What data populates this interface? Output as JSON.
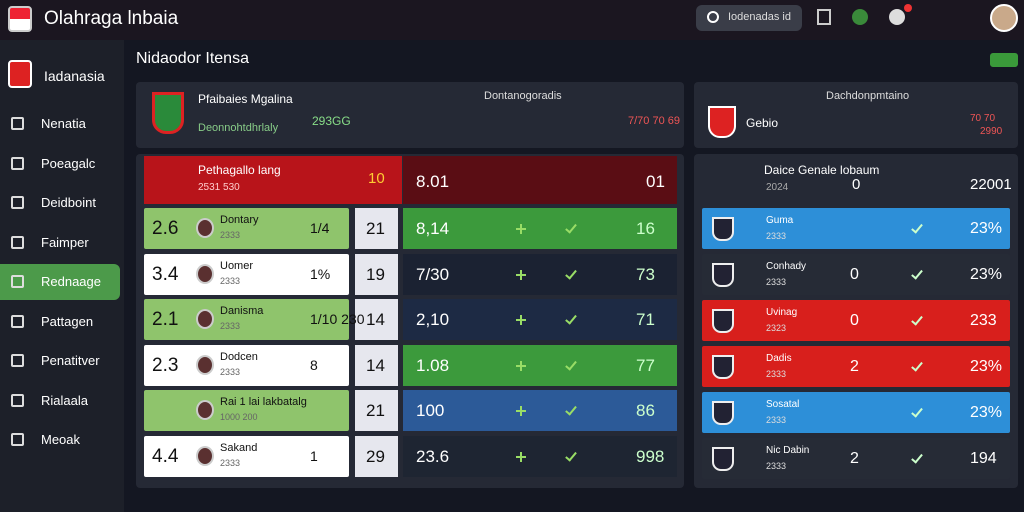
{
  "header": {
    "brand": "Olahraga lnbaia",
    "search": "Iodenadas id"
  },
  "sidebar": {
    "title": "Iadanasia",
    "items": [
      "Nenatia",
      "Poeagalc",
      "Deidboint",
      "Faimper",
      "Rednaage",
      "Pattagen",
      "Penatitver",
      "Rialaala",
      "Meoak"
    ]
  },
  "main": {
    "title": "Nidaodor Itensa"
  },
  "left": {
    "badge": "Dontanogoradis",
    "team": "Pfaibaies Mgalina",
    "sub": "Deonnohtdhrlaly",
    "score": "293GG",
    "stat": "7/70 70 69",
    "featured": {
      "name": "Pethagallo lang",
      "sub": "2531 530",
      "mid": "10",
      "value": "8.01",
      "last": "01"
    },
    "rows": [
      {
        "rank": "2.6",
        "name": "Dontary",
        "sub": "2333",
        "val": "1/4",
        "col2": "21",
        "col3": "8,14",
        "last": "16"
      },
      {
        "rank": "3.4",
        "name": "Uomer",
        "sub": "2333",
        "val": "1%",
        "col2": "19",
        "col3": "7/30",
        "last": "73"
      },
      {
        "rank": "2.1",
        "name": "Danisma",
        "sub": "2333",
        "val": "1/10 230",
        "col2": "14",
        "col3": "2,10",
        "last": "71"
      },
      {
        "rank": "2.3",
        "name": "Dodcen",
        "sub": "2333",
        "val": "8",
        "col2": "14",
        "col3": "1.08",
        "last": "77"
      },
      {
        "rank": "",
        "name": "Rai 1 lai lakbatalg",
        "sub": "1000 200",
        "val": "",
        "col2": "21",
        "col3": "100",
        "last": "86"
      },
      {
        "rank": "4.4",
        "name": "Sakand",
        "sub": "2333",
        "val": "1",
        "col2": "29",
        "col3": "23.6",
        "last": "998"
      }
    ]
  },
  "right": {
    "badge": "Dachdonpmtaino",
    "team": "Gebio",
    "score": "70 70",
    "sub": "2990",
    "head": {
      "name": "Daice Genale lobaum",
      "sub": "2024",
      "mid": "0",
      "last": "22001"
    },
    "rows": [
      {
        "name": "Guma",
        "sub": "2333",
        "mid": "",
        "last": "23%"
      },
      {
        "name": "Conhady",
        "sub": "2333",
        "mid": "0",
        "last": "23%"
      },
      {
        "name": "Uvinag",
        "sub": "2323",
        "mid": "0",
        "last": "233"
      },
      {
        "name": "Dadis",
        "sub": "2333",
        "mid": "2",
        "last": "23%"
      },
      {
        "name": "Sosatal",
        "sub": "2333",
        "mid": "",
        "last": "23%"
      },
      {
        "name": "Nic Dabin",
        "sub": "2333",
        "mid": "2",
        "last": "194"
      }
    ]
  }
}
